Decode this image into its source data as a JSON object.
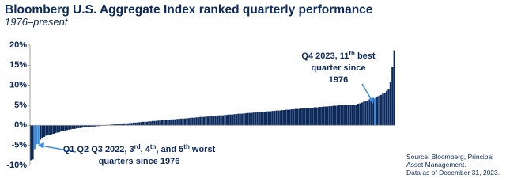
{
  "chart_data": {
    "type": "bar",
    "title": "Bloomberg U.S. Aggregate Index ranked quarterly performance",
    "subtitle": "1976–present",
    "color": "#0d2a5c",
    "highlight_color": "#3a8ede",
    "highlighted": [
      2,
      3,
      4,
      181
    ],
    "ylim": [
      -10,
      20
    ],
    "yticks": [
      {
        "value": 20,
        "label": "20%"
      },
      {
        "value": 15,
        "label": "15%"
      },
      {
        "value": 10,
        "label": "10%"
      },
      {
        "value": 5,
        "label": "5%"
      },
      {
        "value": 0,
        "label": "0%"
      },
      {
        "value": -5,
        "label": "-5%"
      },
      {
        "value": -10,
        "label": "-10%"
      }
    ],
    "values": [
      -8.7,
      -8.5,
      -5.93,
      -4.75,
      -4.69,
      -3.6,
      -3.1,
      -2.9,
      -2.6,
      -2.4,
      -2.4,
      -2.2,
      -2.1,
      -1.9,
      -1.8,
      -1.7,
      -1.5,
      -1.4,
      -1.3,
      -1.2,
      -1.1,
      -1.0,
      -0.9,
      -0.9,
      -0.8,
      -0.7,
      -0.7,
      -0.6,
      -0.5,
      -0.5,
      -0.4,
      -0.4,
      -0.3,
      -0.3,
      -0.3,
      -0.2,
      -0.2,
      -0.1,
      -0.1,
      -0.1,
      0.1,
      0.1,
      0.2,
      0.2,
      0.3,
      0.3,
      0.3,
      0.4,
      0.4,
      0.5,
      0.5,
      0.5,
      0.6,
      0.6,
      0.7,
      0.7,
      0.7,
      0.8,
      0.8,
      0.9,
      0.9,
      0.9,
      1.0,
      1.0,
      1.1,
      1.1,
      1.1,
      1.2,
      1.2,
      1.3,
      1.3,
      1.3,
      1.4,
      1.4,
      1.5,
      1.5,
      1.5,
      1.6,
      1.6,
      1.7,
      1.7,
      1.7,
      1.8,
      1.8,
      1.9,
      1.9,
      1.9,
      2.0,
      2.0,
      2.1,
      2.1,
      2.1,
      2.2,
      2.2,
      2.3,
      2.3,
      2.3,
      2.4,
      2.4,
      2.5,
      2.5,
      2.5,
      2.6,
      2.6,
      2.7,
      2.7,
      2.7,
      2.8,
      2.8,
      2.9,
      2.9,
      2.9,
      3.0,
      3.0,
      3.1,
      3.1,
      3.1,
      3.2,
      3.2,
      3.3,
      3.3,
      3.3,
      3.4,
      3.4,
      3.5,
      3.5,
      3.5,
      3.6,
      3.6,
      3.7,
      3.7,
      3.7,
      3.8,
      3.8,
      3.9,
      3.9,
      3.9,
      4.0,
      4.0,
      4.1,
      4.1,
      4.1,
      4.2,
      4.2,
      4.3,
      4.3,
      4.3,
      4.4,
      4.4,
      4.5,
      4.5,
      4.5,
      4.6,
      4.6,
      4.7,
      4.7,
      4.7,
      4.8,
      4.8,
      4.9,
      4.9,
      4.9,
      5.0,
      5.0,
      5.0,
      5.0,
      5.0,
      5.1,
      5.1,
      5.1,
      5.1,
      5.2,
      5.4,
      5.5,
      5.7,
      5.9,
      6.0,
      6.2,
      6.4,
      6.5,
      6.7,
      6.82,
      7.2,
      7.4,
      7.6,
      7.9,
      8.1,
      8.6,
      9.1,
      10.9,
      14.6,
      18.7
    ],
    "annotations": [
      {
        "lines": [
          [
            {
              "t": "Q4 2023, 11"
            },
            {
              "t": "th",
              "sup": true
            },
            {
              "t": " best"
            }
          ],
          [
            {
              "t": "quarter since"
            }
          ],
          [
            {
              "t": "1976"
            }
          ]
        ]
      },
      {
        "lines": [
          [
            {
              "t": "Q1 Q2 Q3 2022, 3"
            },
            {
              "t": "rd",
              "sup": true
            },
            {
              "t": ", 4"
            },
            {
              "t": "th",
              "sup": true
            },
            {
              "t": ", and 5"
            },
            {
              "t": "th",
              "sup": true
            },
            {
              "t": " worst"
            }
          ],
          [
            {
              "t": "quarters since 1976"
            }
          ]
        ]
      }
    ],
    "source": [
      "Source: Bloomberg, Principal",
      "Asset Management.",
      "Data as of December 31, 2023."
    ]
  }
}
